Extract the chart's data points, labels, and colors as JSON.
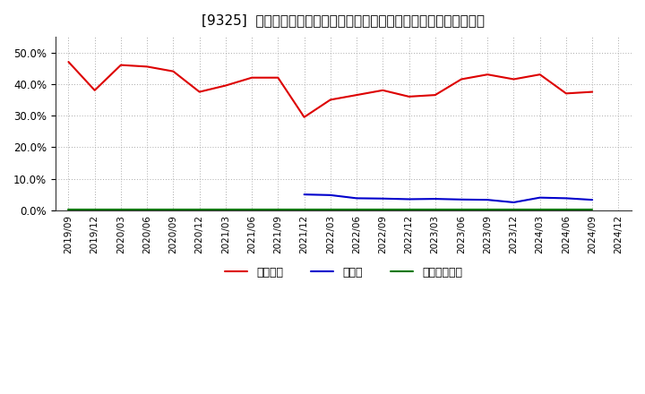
{
  "title": "[9325]  自己資本、のれん、繰延税金資産の総資産に対する比率の推移",
  "x_labels": [
    "2019/09",
    "2019/12",
    "2020/03",
    "2020/06",
    "2020/09",
    "2020/12",
    "2021/03",
    "2021/06",
    "2021/09",
    "2021/12",
    "2022/03",
    "2022/06",
    "2022/09",
    "2022/12",
    "2023/03",
    "2023/06",
    "2023/09",
    "2023/12",
    "2024/03",
    "2024/06",
    "2024/09",
    "2024/12"
  ],
  "equity": [
    0.47,
    0.38,
    0.46,
    0.455,
    0.44,
    0.375,
    0.395,
    0.42,
    0.42,
    0.295,
    0.35,
    0.365,
    0.38,
    0.36,
    0.365,
    0.415,
    0.43,
    0.415,
    0.43,
    0.37,
    0.375,
    null
  ],
  "goodwill": [
    null,
    null,
    null,
    null,
    null,
    null,
    null,
    null,
    null,
    0.05,
    0.048,
    0.038,
    0.037,
    0.035,
    0.036,
    0.034,
    0.033,
    0.025,
    0.04,
    0.038,
    0.033,
    null
  ],
  "deferred_tax": [
    0.001,
    0.001,
    0.001,
    0.001,
    0.001,
    0.001,
    0.001,
    0.001,
    0.001,
    0.001,
    0.001,
    0.001,
    0.001,
    0.001,
    0.001,
    0.001,
    0.001,
    0.001,
    0.001,
    0.001,
    0.001,
    null
  ],
  "equity_color": "#dd0000",
  "goodwill_color": "#0000cc",
  "deferred_tax_color": "#007700",
  "legend_labels": [
    "自己資本",
    "のれん",
    "繰延税金資産"
  ],
  "ylim": [
    0.0,
    0.55
  ],
  "yticks": [
    0.0,
    0.1,
    0.2,
    0.3,
    0.4,
    0.5
  ],
  "background_color": "#ffffff",
  "grid_color": "#aaaaaa",
  "title_fontsize": 11
}
